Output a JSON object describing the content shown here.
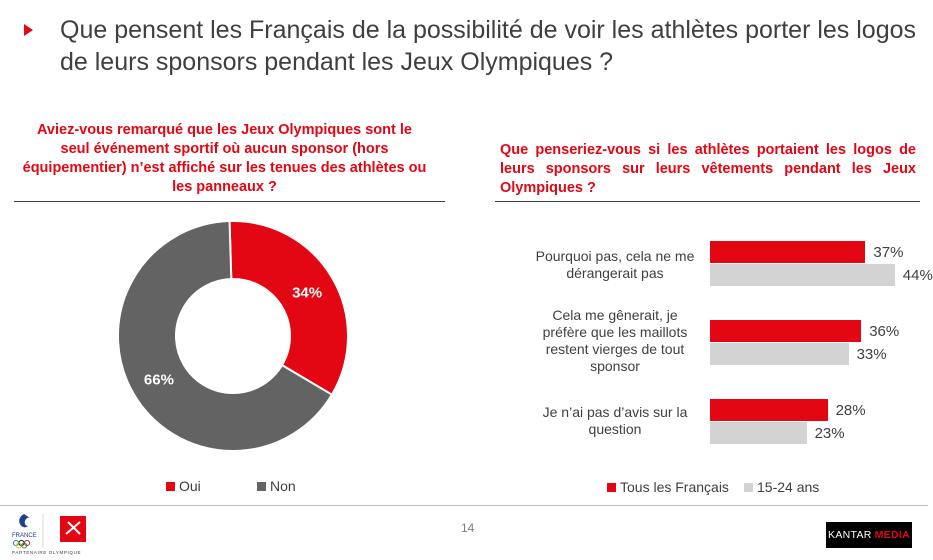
{
  "header": {
    "title": "Que pensent les Français de la possibilité de voir les athlètes porter les logos de leurs sponsors pendant les Jeux Olympiques ?"
  },
  "left": {
    "question": "Aviez-vous remarqué que les Jeux Olympiques sont le seul événement sportif où aucun sponsor (hors équipementier) n’est affiché sur les tenues des athlètes ou les panneaux ?",
    "legend": {
      "oui": "Oui",
      "non": "Non"
    }
  },
  "right": {
    "question": "Que penseriez-vous si les athlètes portaient les logos de leurs sponsors sur leurs vêtements pendant les Jeux Olympiques ?",
    "legend": {
      "series1": "Tous les Français",
      "series2": "15-24 ans"
    }
  },
  "footer": {
    "page_number": "14",
    "kantar": "KANTAR",
    "media": "MEDIA",
    "france": "FRANCE",
    "partner": "PARTENAIRE OLYMPIQUE"
  },
  "colors": {
    "red": "#e30613",
    "grey": "#636363",
    "light_grey": "#d3d3d3"
  },
  "chart_data": [
    {
      "type": "pie",
      "style": "donut",
      "categories": [
        "Oui",
        "Non"
      ],
      "values": [
        34,
        66
      ],
      "labels": [
        "34%",
        "66%"
      ]
    },
    {
      "type": "bar",
      "orientation": "horizontal",
      "categories": [
        "Pourquoi pas, cela ne me dérangerait pas",
        "Cela me gênerait, je préfère que les maillots restent vierges de tout sponsor",
        "Je n’ai pas d’avis sur la question"
      ],
      "category_lines": [
        [
          "Pourquoi pas, cela ne me",
          "dérangerait pas"
        ],
        [
          "Cela me gênerait, je",
          "préfère que les maillots",
          "restent vierges de tout",
          "sponsor"
        ],
        [
          "Je n’ai pas d’avis sur la",
          "question"
        ]
      ],
      "series": [
        {
          "name": "Tous les Français",
          "values": [
            37,
            36,
            28
          ],
          "labels": [
            "37%",
            "36%",
            "28%"
          ]
        },
        {
          "name": "15-24 ans",
          "values": [
            44,
            33,
            23
          ],
          "labels": [
            "44%",
            "33%",
            "23%"
          ]
        }
      ],
      "xlim": [
        0,
        50
      ]
    }
  ]
}
